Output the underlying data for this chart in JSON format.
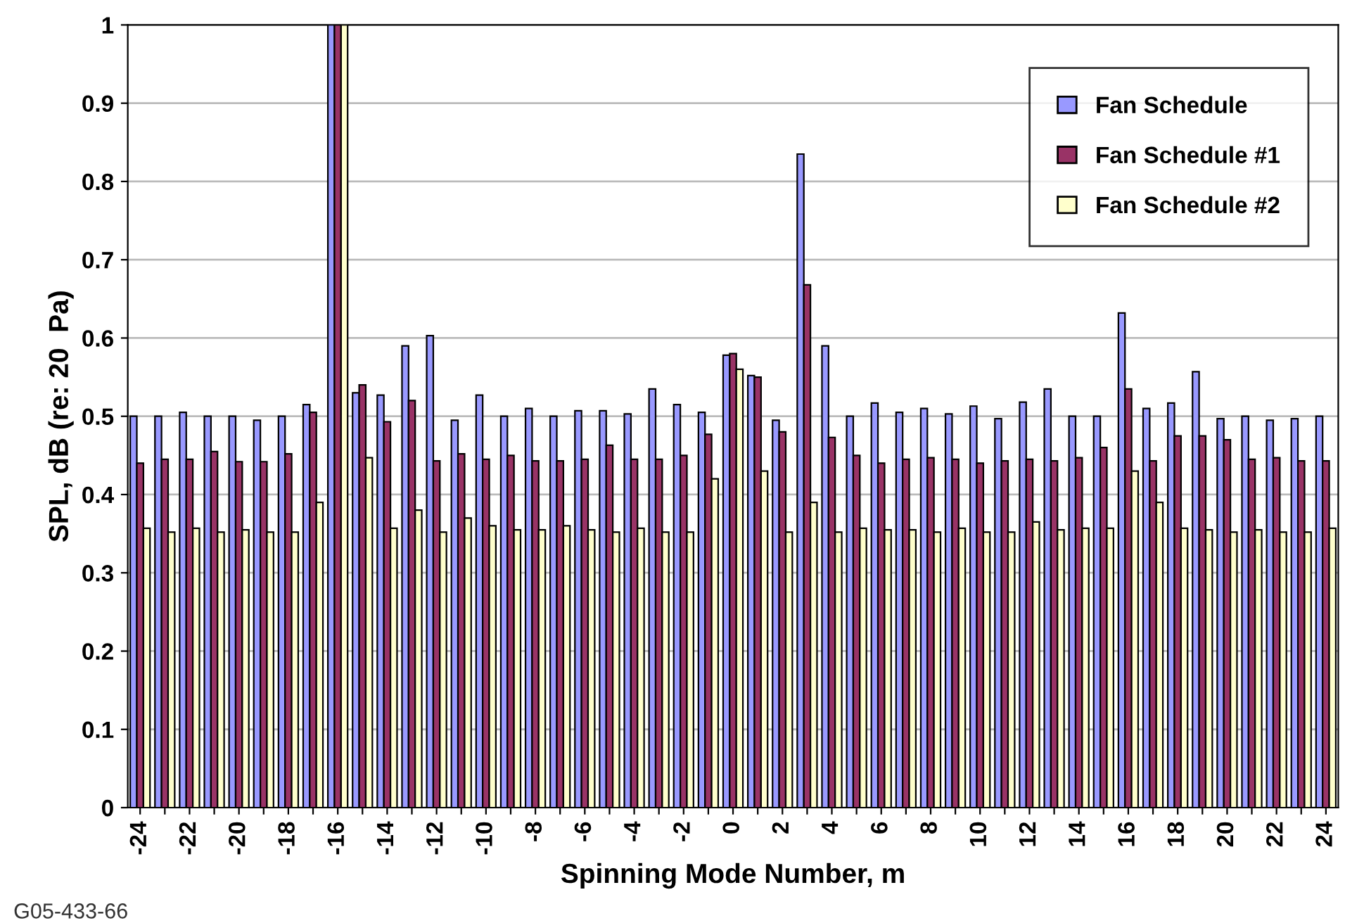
{
  "chart_data": {
    "type": "bar",
    "xlabel": "Spinning Mode Number, m",
    "ylabel": "SPL, dB (re: 20  Pa)",
    "categories": [
      "-24",
      null,
      "-22",
      null,
      "-20",
      null,
      "-18",
      null,
      "-16",
      null,
      "-14",
      null,
      "-12",
      null,
      "-10",
      null,
      "-8",
      null,
      "-6",
      null,
      "-4",
      null,
      "-2",
      null,
      "0",
      null,
      "2",
      null,
      "4",
      null,
      "6",
      null,
      "8",
      null,
      "10",
      null,
      "12",
      null,
      "14",
      null,
      "16",
      null,
      "18",
      null,
      "20",
      null,
      "22",
      null,
      "24"
    ],
    "series": [
      {
        "name": "Fan Schedule",
        "color": "#9999ff",
        "values": [
          0.5,
          0.5,
          0.505,
          0.5,
          0.5,
          0.495,
          0.5,
          0.515,
          1.0,
          0.53,
          0.527,
          0.59,
          0.603,
          0.495,
          0.527,
          0.5,
          0.51,
          0.5,
          0.507,
          0.507,
          0.503,
          0.535,
          0.515,
          0.505,
          0.578,
          0.552,
          0.495,
          0.835,
          0.59,
          0.5,
          0.517,
          0.505,
          0.51,
          0.503,
          0.513,
          0.497,
          0.518,
          0.535,
          0.5,
          0.5,
          0.632,
          0.51,
          0.517,
          0.557,
          0.497,
          0.5,
          0.495,
          0.497,
          0.5
        ]
      },
      {
        "name": "Fan Schedule #1",
        "color": "#993366",
        "values": [
          0.44,
          0.445,
          0.445,
          0.455,
          0.442,
          0.442,
          0.452,
          0.505,
          1.0,
          0.54,
          0.493,
          0.52,
          0.443,
          0.452,
          0.445,
          0.45,
          0.443,
          0.443,
          0.445,
          0.463,
          0.445,
          0.445,
          0.45,
          0.477,
          0.58,
          0.55,
          0.48,
          0.668,
          0.473,
          0.45,
          0.44,
          0.445,
          0.447,
          0.445,
          0.44,
          0.443,
          0.445,
          0.443,
          0.447,
          0.46,
          0.535,
          0.443,
          0.475,
          0.475,
          0.47,
          0.445,
          0.447,
          0.443,
          0.443
        ]
      },
      {
        "name": "Fan Schedule #2",
        "color": "#ffffcc",
        "values": [
          0.357,
          0.352,
          0.357,
          0.352,
          0.355,
          0.352,
          0.352,
          0.39,
          1.0,
          0.447,
          0.357,
          0.38,
          0.352,
          0.37,
          0.36,
          0.355,
          0.355,
          0.36,
          0.355,
          0.352,
          0.357,
          0.352,
          0.352,
          0.42,
          0.56,
          0.43,
          0.352,
          0.39,
          0.352,
          0.357,
          0.355,
          0.355,
          0.352,
          0.357,
          0.352,
          0.352,
          0.365,
          0.355,
          0.357,
          0.357,
          0.43,
          0.39,
          0.357,
          0.355,
          0.352,
          0.355,
          0.352,
          0.352,
          0.357
        ]
      }
    ],
    "ylim": [
      0,
      1
    ],
    "yticks": [
      0,
      0.1,
      0.2,
      0.3,
      0.4,
      0.5,
      0.6,
      0.7,
      0.8,
      0.9,
      1
    ],
    "grid": "y",
    "legend": "top right",
    "annotations": [
      "G05-433-66"
    ]
  }
}
